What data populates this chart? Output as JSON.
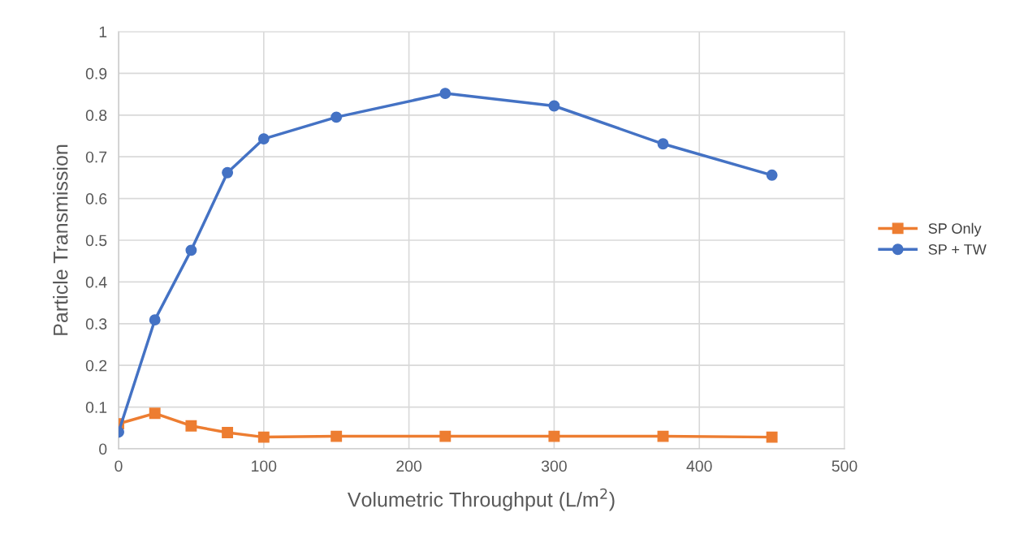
{
  "chart_data": {
    "type": "line",
    "xlabel": "Volumetric Throughput (L/m$^{2}$)",
    "ylabel": "Particle Transmission",
    "x": [
      0,
      25,
      50,
      75,
      100,
      150,
      225,
      300,
      375,
      450
    ],
    "series": [
      {
        "name": "SP Only",
        "color": "#ed7d31",
        "marker": "square",
        "values": [
          0.06,
          0.085,
          0.055,
          0.039,
          0.028,
          0.03,
          0.03,
          0.03,
          0.03,
          0.028
        ]
      },
      {
        "name": "SP + TW",
        "color": "#4472c4",
        "marker": "circle",
        "values": [
          0.04,
          0.309,
          0.476,
          0.662,
          0.743,
          0.795,
          0.852,
          0.822,
          0.731,
          0.656
        ]
      }
    ],
    "xlim": [
      0,
      500
    ],
    "xticks": [
      0,
      100,
      200,
      300,
      400,
      500
    ],
    "ylim": [
      0,
      1
    ],
    "yticks": [
      0,
      0.1,
      0.2,
      0.3,
      0.4,
      0.5,
      0.6,
      0.7,
      0.8,
      0.9,
      1
    ],
    "grid": true,
    "legend": "right",
    "line_style": "solid"
  }
}
